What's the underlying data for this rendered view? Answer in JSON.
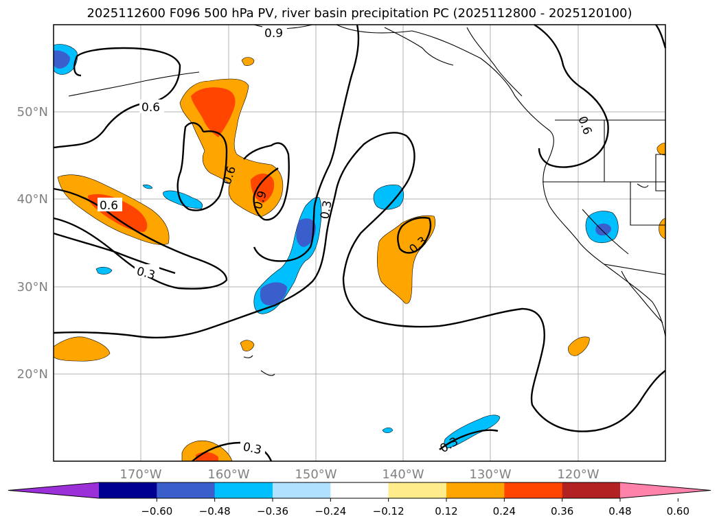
{
  "title": "2025112600 F096 500 hPa PV, river basin precipitation PC (2025112800 - 2025120100)",
  "lon_ticks": [
    "170°W",
    "160°W",
    "150°W",
    "140°W",
    "130°W",
    "120°W"
  ],
  "lat_ticks": [
    "50°N",
    "40°N",
    "30°N",
    "20°N"
  ],
  "contour_labels": [
    "0.9",
    "0.6",
    "0.6",
    "0.9",
    "0.6",
    "0.3",
    "0.3",
    "0.3",
    "0.3",
    "0.3",
    "0.6"
  ],
  "colorbar": {
    "colors": [
      "#9b30d9",
      "#000090",
      "#3a5fcd",
      "#00bfff",
      "#b0e2ff",
      "#ffffff",
      "#ffec8b",
      "#ffa500",
      "#ff4500",
      "#b22222",
      "#ff82ab"
    ],
    "labels": [
      "−0.60",
      "−0.48",
      "−0.36",
      "−0.24",
      "−0.12",
      "0.12",
      "0.24",
      "0.36",
      "0.48",
      "0.60"
    ]
  },
  "colors": {
    "grid": "#b0b0b0",
    "tick_label": "#808080",
    "pos_light": "#ffa500",
    "pos_strong": "#ff4500",
    "neg_light": "#00bfff",
    "neg_strong": "#3a5fcd"
  }
}
